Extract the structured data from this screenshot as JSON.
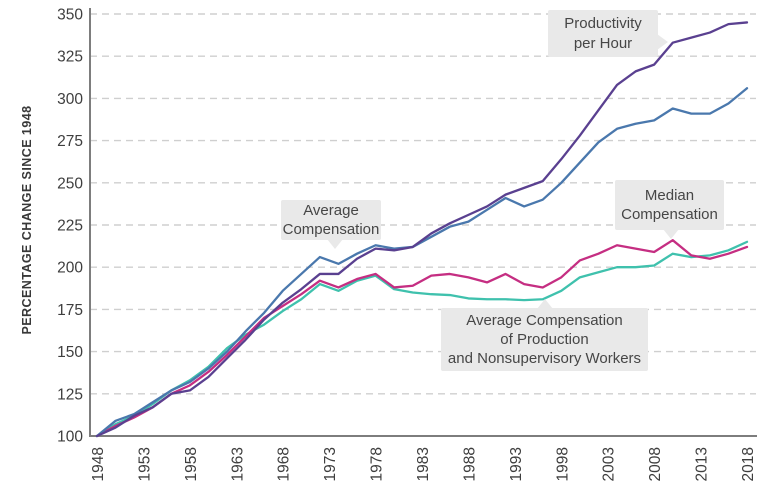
{
  "chart_data": {
    "type": "line",
    "ylabel": "PERCENTAGE CHANGE SINCE 1948",
    "xlabel": "",
    "grid": "horizontal dashed",
    "legend": "inline gray callout labels",
    "xlim": [
      1948,
      2018
    ],
    "ylim": [
      100,
      350
    ],
    "x_ticks": [
      1948,
      1953,
      1958,
      1963,
      1968,
      1973,
      1978,
      1983,
      1988,
      1993,
      1998,
      2003,
      2008,
      2013,
      2018
    ],
    "y_ticks": [
      100,
      125,
      150,
      175,
      200,
      225,
      250,
      275,
      300,
      325,
      350
    ],
    "x": [
      1948,
      1950,
      1952,
      1954,
      1956,
      1958,
      1960,
      1962,
      1964,
      1966,
      1968,
      1970,
      1972,
      1974,
      1976,
      1978,
      1980,
      1982,
      1984,
      1986,
      1988,
      1990,
      1992,
      1994,
      1996,
      1998,
      2000,
      2002,
      2004,
      2006,
      2008,
      2010,
      2012,
      2014,
      2016,
      2018
    ],
    "series": [
      {
        "name": "Productivity per Hour",
        "color": "#5a4090",
        "values": [
          100,
          105,
          112,
          117,
          125,
          127,
          135,
          146,
          157,
          169,
          179,
          187,
          196,
          196,
          205,
          211,
          210,
          212,
          220,
          226,
          231,
          236,
          243,
          247,
          251,
          264,
          278,
          293,
          308,
          316,
          320,
          333,
          336,
          339,
          344,
          345
        ]
      },
      {
        "name": "Average Compensation",
        "color": "#4a78ad",
        "values": [
          100,
          109,
          113,
          120,
          127,
          132,
          140,
          150,
          162,
          173,
          186,
          196,
          206,
          202,
          208,
          213,
          211,
          212,
          218,
          224,
          227,
          234,
          241,
          236,
          240,
          250,
          262,
          274,
          282,
          285,
          287,
          294,
          291,
          291,
          297,
          306
        ]
      },
      {
        "name": "Median Compensation",
        "color": "#c52e82",
        "values": [
          100,
          106,
          111,
          117,
          125,
          130,
          138,
          148,
          159,
          170,
          177,
          184,
          192,
          188,
          193,
          196,
          188,
          189,
          195,
          196,
          194,
          191,
          196,
          190,
          188,
          194,
          204,
          208,
          213,
          211,
          209,
          216,
          207,
          205,
          208,
          212
        ]
      },
      {
        "name": "Average Compensation of Production and Nonsupervisory Workers",
        "color": "#3fc1ad",
        "values": [
          100,
          107,
          112,
          119,
          127,
          133,
          141,
          152,
          160,
          166,
          174,
          181,
          190,
          186,
          192,
          195,
          187,
          185,
          184,
          183.5,
          181.5,
          181,
          181,
          180.5,
          181,
          186,
          194,
          197,
          200,
          200,
          201,
          208,
          206,
          207,
          210,
          215
        ]
      }
    ],
    "annotations": {
      "productivity": "Productivity\nper Hour",
      "average": "Average\nCompensation",
      "median": "Median\nCompensation",
      "production": "Average Compensation\nof Production\nand Nonsupervisory Workers"
    },
    "colors": {
      "grid": "#cfcfcf",
      "axis": "#7d7d7d",
      "tick_text": "#3e3e3e",
      "callout_bg": "#e9e9e9",
      "callout_text": "#464646"
    }
  }
}
